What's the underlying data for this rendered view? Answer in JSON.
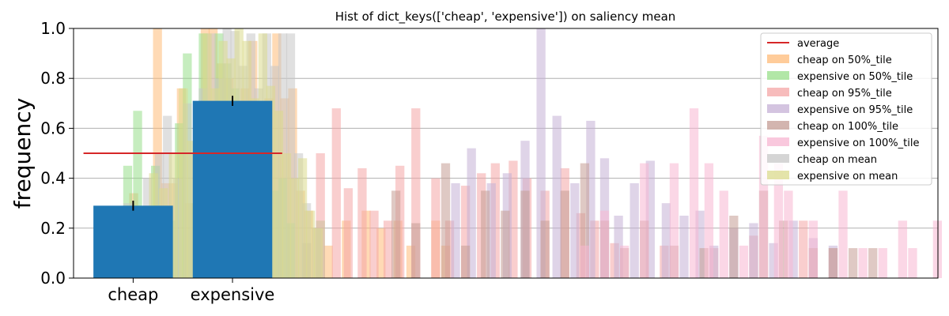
{
  "chart_data": {
    "type": "bar",
    "title": "Hist of dict_keys(['cheap', 'expensive']) on saliency mean",
    "xlabel": "",
    "ylabel": "frequency",
    "ylim": [
      0,
      1.0
    ],
    "yticks": [
      "0.0",
      "0.2",
      "0.4",
      "0.6",
      "0.8",
      "1.0"
    ],
    "categories": [
      "cheap",
      "expensive"
    ],
    "grid": "horizontal",
    "legend_position": "top-right",
    "main_bars": {
      "color": "#1f77b4",
      "values": [
        0.29,
        0.71
      ],
      "errors": [
        0.02,
        0.02
      ]
    },
    "average": {
      "label": "average",
      "value": 0.5,
      "color": "#d62728"
    },
    "hist_x_range": [
      -0.6,
      8.1
    ],
    "series": [
      {
        "name": "cheap on 50%_tile",
        "color": "#ffbb78",
        "bins": [
          [
            -0.04,
            0.34
          ],
          [
            0.1,
            0.29
          ],
          [
            0.2,
            1.0
          ],
          [
            0.28,
            0.38
          ],
          [
            0.36,
            0.38
          ],
          [
            0.44,
            0.76
          ],
          [
            0.52,
            0.3
          ],
          [
            0.6,
            0.15
          ],
          [
            0.68,
            1.0
          ],
          [
            0.76,
            1.0
          ],
          [
            0.84,
            0.86
          ],
          [
            0.92,
            0.8
          ],
          [
            1.0,
            0.6
          ],
          [
            1.08,
            0.76
          ],
          [
            1.16,
            0.95
          ],
          [
            1.24,
            0.4
          ],
          [
            1.32,
            0.72
          ],
          [
            1.4,
            0.98
          ],
          [
            1.48,
            0.72
          ],
          [
            1.56,
            0.76
          ],
          [
            1.64,
            0.35
          ],
          [
            1.72,
            0.27
          ],
          [
            1.8,
            0.2
          ],
          [
            1.92,
            0.13
          ],
          [
            2.1,
            0.23
          ],
          [
            2.3,
            0.27
          ],
          [
            2.45,
            0.2
          ],
          [
            2.62,
            0.23
          ],
          [
            2.75,
            0.13
          ],
          [
            3.0,
            0.23
          ],
          [
            3.1,
            0.13
          ]
        ]
      },
      {
        "name": "expensive on 50%_tile",
        "color": "#98df8a",
        "bins": [
          [
            -0.1,
            0.45
          ],
          [
            0.0,
            0.67
          ],
          [
            0.08,
            0.22
          ],
          [
            0.18,
            0.45
          ],
          [
            0.26,
            0.22
          ],
          [
            0.34,
            0.23
          ],
          [
            0.42,
            0.62
          ],
          [
            0.5,
            0.9
          ],
          [
            0.58,
            0.3
          ],
          [
            0.66,
            0.98
          ],
          [
            0.74,
            0.5
          ],
          [
            0.82,
            0.98
          ],
          [
            0.9,
            0.86
          ],
          [
            0.98,
            0.76
          ],
          [
            1.06,
            0.67
          ],
          [
            1.14,
            0.45
          ],
          [
            1.22,
            0.5
          ],
          [
            1.3,
            0.58
          ],
          [
            1.38,
            0.35
          ],
          [
            1.46,
            0.4
          ],
          [
            1.54,
            0.22
          ],
          [
            1.7,
            0.14
          ],
          [
            1.84,
            0.23
          ]
        ]
      },
      {
        "name": "cheap on 95%_tile",
        "color": "#f4a6a6",
        "bins": [
          [
            1.7,
            0.14
          ],
          [
            1.84,
            0.5
          ],
          [
            2.0,
            0.68
          ],
          [
            2.12,
            0.36
          ],
          [
            2.26,
            0.44
          ],
          [
            2.38,
            0.27
          ],
          [
            2.52,
            0.23
          ],
          [
            2.64,
            0.45
          ],
          [
            2.8,
            0.68
          ],
          [
            3.0,
            0.4
          ],
          [
            3.14,
            0.23
          ],
          [
            3.3,
            0.37
          ],
          [
            3.46,
            0.42
          ],
          [
            3.6,
            0.46
          ],
          [
            3.78,
            0.47
          ],
          [
            3.92,
            0.4
          ],
          [
            4.1,
            0.35
          ],
          [
            4.3,
            0.44
          ],
          [
            4.46,
            0.26
          ],
          [
            4.6,
            0.23
          ],
          [
            4.8,
            0.14
          ],
          [
            5.3,
            0.13
          ],
          [
            5.8,
            0.12
          ],
          [
            6.2,
            0.17
          ],
          [
            6.7,
            0.23
          ],
          [
            7.0,
            0.12
          ]
        ]
      },
      {
        "name": "expensive on 95%_tile",
        "color": "#c5b0d5",
        "bins": [
          [
            3.2,
            0.38
          ],
          [
            3.36,
            0.52
          ],
          [
            3.56,
            0.38
          ],
          [
            3.72,
            0.42
          ],
          [
            3.9,
            0.55
          ],
          [
            4.06,
            1.0
          ],
          [
            4.22,
            0.65
          ],
          [
            4.4,
            0.38
          ],
          [
            4.56,
            0.63
          ],
          [
            4.7,
            0.48
          ],
          [
            4.84,
            0.25
          ],
          [
            5.0,
            0.38
          ],
          [
            5.16,
            0.47
          ],
          [
            5.32,
            0.3
          ],
          [
            5.5,
            0.25
          ],
          [
            5.66,
            0.27
          ],
          [
            5.8,
            0.13
          ],
          [
            6.0,
            0.2
          ],
          [
            6.2,
            0.22
          ],
          [
            6.4,
            0.14
          ],
          [
            6.6,
            0.23
          ],
          [
            6.8,
            0.16
          ],
          [
            7.0,
            0.13
          ]
        ]
      },
      {
        "name": "cheap on 100%_tile",
        "color": "#c49c94",
        "bins": [
          [
            2.6,
            0.35
          ],
          [
            2.8,
            0.22
          ],
          [
            3.1,
            0.46
          ],
          [
            3.3,
            0.13
          ],
          [
            3.5,
            0.35
          ],
          [
            3.7,
            0.27
          ],
          [
            3.9,
            0.35
          ],
          [
            4.1,
            0.23
          ],
          [
            4.3,
            0.35
          ],
          [
            4.5,
            0.46
          ],
          [
            4.7,
            0.23
          ],
          [
            4.9,
            0.12
          ],
          [
            5.1,
            0.23
          ],
          [
            5.4,
            0.13
          ],
          [
            5.7,
            0.12
          ],
          [
            6.0,
            0.25
          ],
          [
            6.3,
            0.35
          ],
          [
            6.5,
            0.23
          ],
          [
            6.8,
            0.12
          ],
          [
            7.0,
            0.12
          ],
          [
            7.2,
            0.12
          ],
          [
            7.4,
            0.12
          ]
        ]
      },
      {
        "name": "expensive on 100%_tile",
        "color": "#f7b6d2",
        "bins": [
          [
            4.5,
            0.13
          ],
          [
            4.7,
            0.27
          ],
          [
            4.9,
            0.13
          ],
          [
            5.1,
            0.46
          ],
          [
            5.4,
            0.46
          ],
          [
            5.6,
            0.68
          ],
          [
            5.75,
            0.46
          ],
          [
            5.9,
            0.35
          ],
          [
            6.1,
            0.13
          ],
          [
            6.3,
            0.57
          ],
          [
            6.45,
            0.46
          ],
          [
            6.55,
            0.35
          ],
          [
            6.8,
            0.23
          ],
          [
            7.1,
            0.35
          ],
          [
            7.3,
            0.12
          ],
          [
            7.5,
            0.12
          ],
          [
            7.7,
            0.23
          ],
          [
            7.8,
            0.12
          ],
          [
            8.05,
            0.23
          ]
        ]
      },
      {
        "name": "cheap on mean",
        "color": "#c7c7c7",
        "bins": [
          [
            -0.1,
            0.3
          ],
          [
            0.0,
            0.25
          ],
          [
            0.1,
            0.4
          ],
          [
            0.22,
            0.5
          ],
          [
            0.3,
            0.65
          ],
          [
            0.4,
            0.4
          ],
          [
            0.5,
            0.7
          ],
          [
            0.58,
            0.5
          ],
          [
            0.66,
            0.76
          ],
          [
            0.74,
            0.98
          ],
          [
            0.82,
            0.8
          ],
          [
            0.9,
            1.0
          ],
          [
            0.98,
            0.99
          ],
          [
            1.06,
            0.85
          ],
          [
            1.14,
            0.98
          ],
          [
            1.22,
            0.76
          ],
          [
            1.3,
            0.98
          ],
          [
            1.38,
            0.85
          ],
          [
            1.46,
            0.98
          ],
          [
            1.54,
            0.98
          ],
          [
            1.62,
            0.5
          ],
          [
            1.7,
            0.3
          ],
          [
            1.8,
            0.2
          ]
        ]
      },
      {
        "name": "expensive on mean",
        "color": "#dbdb8d",
        "bins": [
          [
            -0.04,
            0.25
          ],
          [
            0.06,
            0.2
          ],
          [
            0.16,
            0.42
          ],
          [
            0.26,
            0.36
          ],
          [
            0.36,
            0.5
          ],
          [
            0.46,
            0.76
          ],
          [
            0.54,
            0.55
          ],
          [
            0.62,
            0.35
          ],
          [
            0.7,
            0.98
          ],
          [
            0.78,
            0.76
          ],
          [
            0.86,
            0.95
          ],
          [
            0.94,
            0.88
          ],
          [
            1.02,
            1.0
          ],
          [
            1.1,
            0.95
          ],
          [
            1.18,
            0.72
          ],
          [
            1.26,
            0.98
          ],
          [
            1.34,
            0.77
          ],
          [
            1.42,
            0.67
          ],
          [
            1.5,
            0.5
          ],
          [
            1.58,
            0.4
          ],
          [
            1.66,
            0.48
          ],
          [
            1.74,
            0.27
          ],
          [
            1.82,
            0.2
          ]
        ]
      }
    ]
  }
}
